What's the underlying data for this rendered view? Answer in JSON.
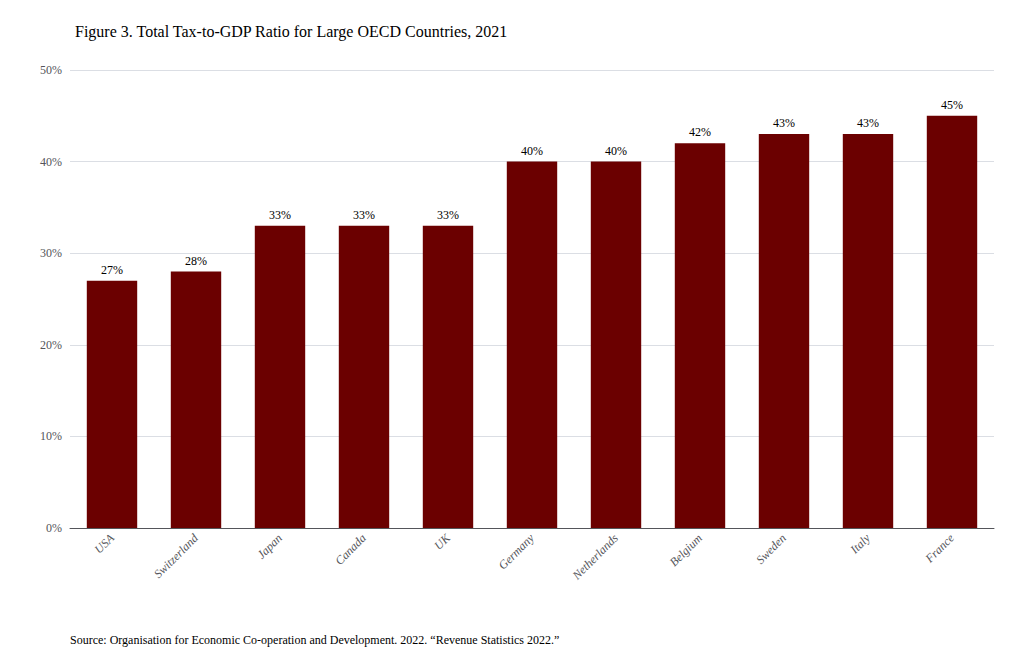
{
  "chart_data": {
    "type": "bar",
    "title": "Figure 3. Total Tax-to-GDP Ratio for Large OECD Countries, 2021",
    "categories": [
      "USA",
      "Switzerland",
      "Japan",
      "Canada",
      "UK",
      "Germany",
      "Netherlands",
      "Belgium",
      "Sweden",
      "Italy",
      "France"
    ],
    "values": [
      27,
      28,
      33,
      33,
      33,
      40,
      40,
      42,
      43,
      43,
      45
    ],
    "value_labels": [
      "27%",
      "28%",
      "33%",
      "33%",
      "33%",
      "40%",
      "40%",
      "42%",
      "43%",
      "43%",
      "45%"
    ],
    "data_labels": true,
    "color": "#6B0000",
    "ylim": [
      0,
      50
    ],
    "yticks": [
      {
        "value": 0,
        "label": "0%"
      },
      {
        "value": 10,
        "label": "10%"
      },
      {
        "value": 20,
        "label": "20%"
      },
      {
        "value": 30,
        "label": "30%"
      },
      {
        "value": 40,
        "label": "40%"
      },
      {
        "value": 50,
        "label": "50%"
      }
    ],
    "grid": true,
    "annotations": [
      "Source: Organisation for Economic Co-operation and Development. 2022. “Revenue Statistics 2022.”"
    ]
  }
}
